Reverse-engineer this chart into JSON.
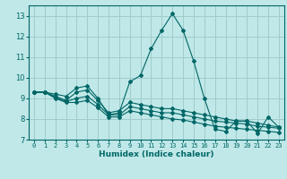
{
  "xlabel": "Humidex (Indice chaleur)",
  "background_color": "#c0e8e8",
  "grid_color": "#a0cccc",
  "line_color": "#006666",
  "xlim": [
    -0.5,
    23.5
  ],
  "ylim": [
    7,
    13.5
  ],
  "yticks": [
    7,
    8,
    9,
    10,
    11,
    12,
    13
  ],
  "xticks": [
    0,
    1,
    2,
    3,
    4,
    5,
    6,
    7,
    8,
    9,
    10,
    11,
    12,
    13,
    14,
    15,
    16,
    17,
    18,
    19,
    20,
    21,
    22,
    23
  ],
  "series": [
    {
      "x": [
        0,
        1,
        2,
        3,
        4,
        5,
        6,
        7,
        8,
        9,
        10,
        11,
        12,
        13,
        14,
        15,
        16,
        17,
        18,
        19,
        20,
        21,
        22,
        23
      ],
      "y": [
        9.3,
        9.3,
        9.2,
        9.1,
        9.5,
        9.6,
        9.0,
        8.2,
        8.3,
        9.8,
        10.1,
        11.4,
        12.3,
        13.1,
        12.3,
        10.8,
        9.0,
        7.5,
        7.4,
        7.9,
        7.9,
        7.3,
        8.1,
        7.6
      ]
    },
    {
      "x": [
        0,
        1,
        2,
        3,
        4,
        5,
        6,
        7,
        8,
        9,
        10,
        11,
        12,
        13,
        14,
        15,
        16,
        17,
        18,
        19,
        20,
        21,
        22,
        23
      ],
      "y": [
        9.3,
        9.3,
        9.1,
        8.9,
        9.3,
        9.4,
        8.9,
        8.3,
        8.4,
        8.8,
        8.7,
        8.6,
        8.5,
        8.5,
        8.4,
        8.3,
        8.2,
        8.1,
        8.0,
        7.9,
        7.9,
        7.8,
        7.7,
        7.6
      ]
    },
    {
      "x": [
        0,
        1,
        2,
        3,
        4,
        5,
        6,
        7,
        8,
        9,
        10,
        11,
        12,
        13,
        14,
        15,
        16,
        17,
        18,
        19,
        20,
        21,
        22,
        23
      ],
      "y": [
        9.3,
        9.3,
        9.05,
        8.85,
        9.0,
        9.1,
        8.7,
        8.2,
        8.2,
        8.6,
        8.5,
        8.4,
        8.3,
        8.3,
        8.2,
        8.1,
        8.0,
        7.9,
        7.85,
        7.8,
        7.75,
        7.65,
        7.6,
        7.55
      ]
    },
    {
      "x": [
        0,
        1,
        2,
        3,
        4,
        5,
        6,
        7,
        8,
        9,
        10,
        11,
        12,
        13,
        14,
        15,
        16,
        17,
        18,
        19,
        20,
        21,
        22,
        23
      ],
      "y": [
        9.3,
        9.3,
        9.0,
        8.8,
        8.8,
        8.9,
        8.55,
        8.1,
        8.1,
        8.4,
        8.3,
        8.2,
        8.1,
        8.0,
        7.95,
        7.85,
        7.75,
        7.65,
        7.6,
        7.55,
        7.5,
        7.45,
        7.4,
        7.35
      ]
    }
  ]
}
